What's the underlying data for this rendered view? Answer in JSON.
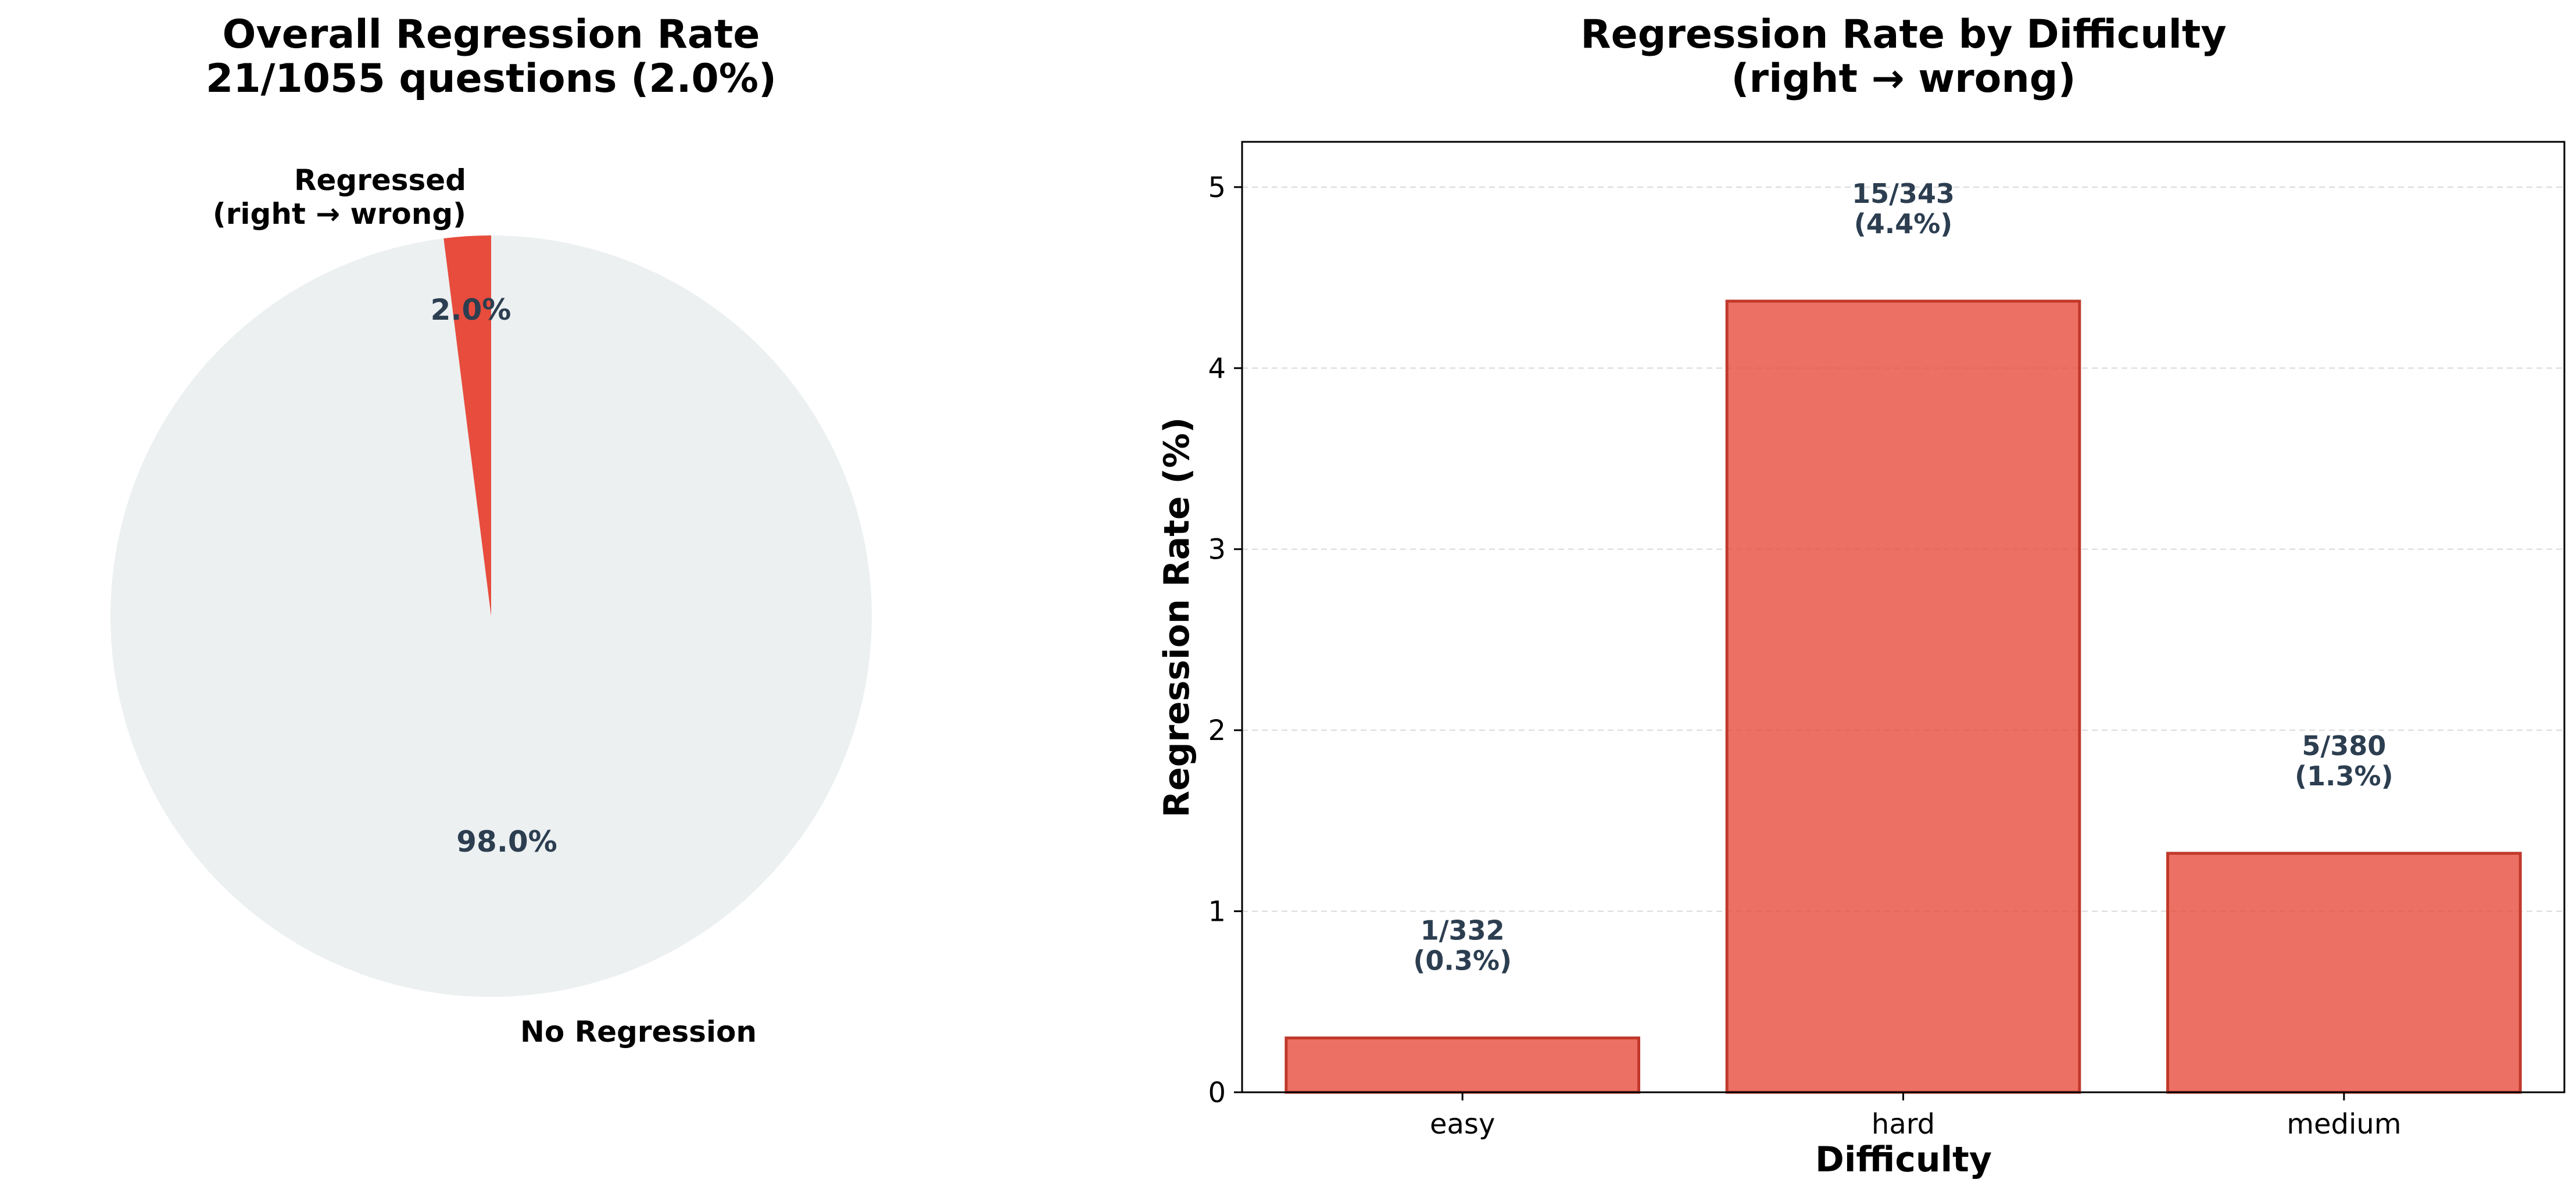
{
  "chart_data": [
    {
      "type": "pie",
      "title_lines": [
        "Overall Regression Rate",
        "21/1055 questions (2.0%)"
      ],
      "slices": [
        {
          "label_lines": [
            "Regressed",
            "(right → wrong)"
          ],
          "value": 21,
          "pct_label": "2.0%",
          "color": "#e74c3c"
        },
        {
          "label_lines": [
            "No Regression"
          ],
          "value": 1034,
          "pct_label": "98.0%",
          "color": "#ecf0f1"
        }
      ]
    },
    {
      "type": "bar",
      "title_lines": [
        "Regression Rate by Difficulty",
        "(right → wrong)"
      ],
      "categories": [
        "easy",
        "hard",
        "medium"
      ],
      "values": [
        0.3,
        4.37,
        1.32
      ],
      "data_labels": [
        [
          "1/332",
          "(0.3%)"
        ],
        [
          "15/343",
          "(4.4%)"
        ],
        [
          "5/380",
          "(1.3%)"
        ]
      ],
      "xlabel": "Difficulty",
      "ylabel": "Regression Rate (%)",
      "ylim": [
        0,
        5.25
      ],
      "yticks": [
        0,
        1,
        2,
        3,
        4,
        5
      ],
      "grid": "horizontal dashed",
      "bar_color": "#e74c3c",
      "bar_edge_color": "#c0392b"
    }
  ]
}
